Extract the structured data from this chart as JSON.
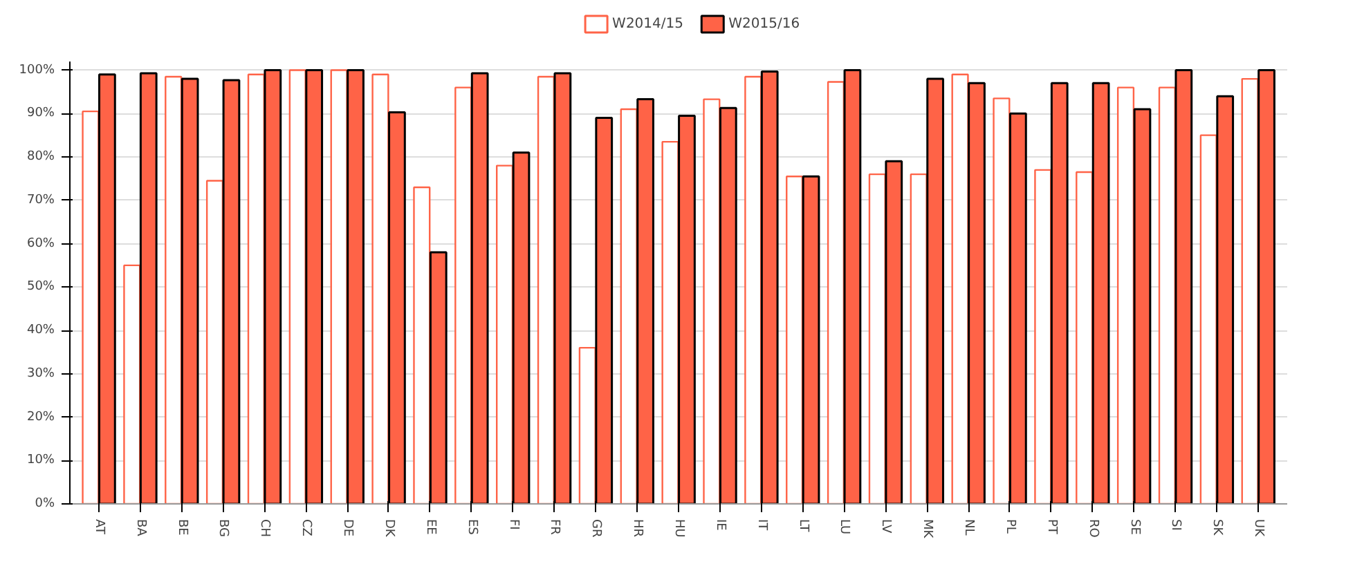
{
  "chart_data": {
    "type": "bar",
    "categories": [
      "AT",
      "BA",
      "BE",
      "BG",
      "CH",
      "CZ",
      "DE",
      "DK",
      "EE",
      "ES",
      "FI",
      "FR",
      "GR",
      "HR",
      "HU",
      "IE",
      "IT",
      "LT",
      "LU",
      "LV",
      "MK",
      "NL",
      "PL",
      "PT",
      "RO",
      "SE",
      "SI",
      "SK",
      "UK"
    ],
    "series": [
      {
        "name": "W2014/15",
        "color": "#ff6347",
        "values": [
          90.5,
          55,
          98.5,
          74.5,
          99,
          100,
          100,
          99,
          73,
          96,
          78,
          98.5,
          36,
          91,
          83.5,
          93.3,
          98.5,
          75.5,
          97.3,
          76,
          76,
          99,
          93.5,
          77,
          76.5,
          96,
          96,
          85,
          98
        ]
      },
      {
        "name": "W2015/16",
        "color": "#ff6347",
        "values": [
          99,
          99.3,
          98,
          97.7,
          100,
          100,
          100,
          90.3,
          58,
          99.3,
          81,
          99.3,
          89,
          93.3,
          89.5,
          91.3,
          99.7,
          75.5,
          100,
          79,
          98,
          97,
          90,
          97,
          97,
          91,
          100,
          94,
          100
        ]
      }
    ],
    "ylim": [
      0,
      102
    ],
    "yticks": [
      {
        "value": 0,
        "label": "0%"
      },
      {
        "value": 10,
        "label": "10%"
      },
      {
        "value": 20,
        "label": "20%"
      },
      {
        "value": 30,
        "label": "30%"
      },
      {
        "value": 40,
        "label": "40%"
      },
      {
        "value": 50,
        "label": "50%"
      },
      {
        "value": 60,
        "label": "60%"
      },
      {
        "value": 70,
        "label": "70%"
      },
      {
        "value": 80,
        "label": "80%"
      },
      {
        "value": 90,
        "label": "90%"
      },
      {
        "value": 100,
        "label": "100%"
      }
    ],
    "grid": "y",
    "legend": "top"
  }
}
